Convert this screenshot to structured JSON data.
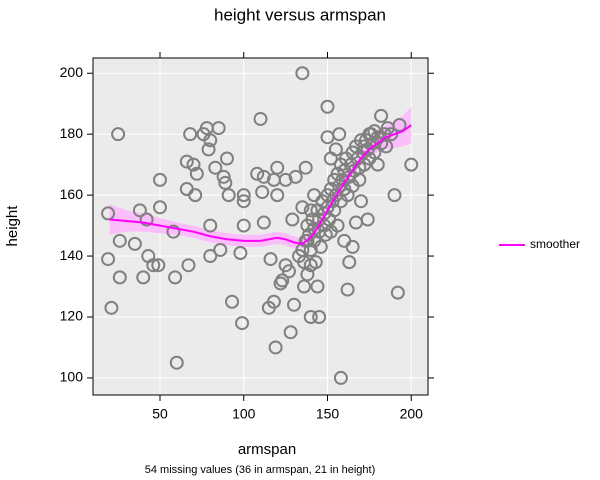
{
  "chart_data": {
    "type": "scatter",
    "title": "height versus armspan",
    "x_label": "armspan",
    "y_label": "height",
    "note": "54 missing values (36 in armspan, 21 in height)",
    "xlim": [
      10,
      210
    ],
    "ylim": [
      94.4,
      205
    ],
    "xticks": [
      50,
      100,
      150,
      200
    ],
    "yticks": [
      100,
      120,
      140,
      160,
      180,
      200
    ],
    "grid": true,
    "points": {
      "color": "#808080",
      "x": [
        19,
        19,
        21,
        25,
        26,
        26,
        35,
        38,
        40,
        42,
        43,
        46,
        49,
        50,
        50,
        58,
        59,
        60,
        66,
        66,
        67,
        68,
        70,
        71,
        72,
        76,
        78,
        79,
        80,
        80,
        80,
        83,
        85,
        86,
        88,
        89,
        90,
        91,
        93,
        98,
        99,
        100,
        100,
        100,
        108,
        110,
        111,
        112,
        112,
        115,
        116,
        118,
        118,
        119,
        120,
        120,
        122,
        123,
        125,
        125,
        127,
        128,
        129,
        130,
        131,
        135,
        135,
        136,
        137,
        138,
        140,
        140,
        142,
        144,
        145,
        150,
        150,
        152,
        155,
        157,
        158,
        160,
        162,
        163,
        165,
        167,
        169,
        170,
        172,
        174,
        175,
        178,
        180,
        182,
        185,
        188,
        190,
        192,
        193,
        200,
        133,
        135,
        136,
        137,
        138,
        138,
        139,
        140,
        140,
        141,
        142,
        142,
        143,
        144,
        145,
        145,
        146,
        147,
        148,
        148,
        149,
        150,
        150,
        151,
        152,
        152,
        153,
        154,
        154,
        155,
        156,
        156,
        157,
        158,
        158,
        159,
        160,
        160,
        161,
        162,
        163,
        164,
        165,
        165,
        166,
        167,
        168,
        169,
        170,
        171,
        172,
        173,
        174,
        175,
        176,
        177,
        178,
        180,
        182,
        184,
        186
      ],
      "y": [
        154,
        139,
        123,
        180,
        145,
        133,
        144,
        155,
        133,
        152,
        140,
        137,
        137,
        165,
        156,
        148,
        133,
        105,
        162,
        171,
        137,
        180,
        170,
        160,
        167,
        180,
        182,
        175,
        150,
        140,
        178,
        169,
        182,
        142,
        166,
        164,
        172,
        160,
        125,
        141,
        118,
        150,
        160,
        158,
        167,
        185,
        161,
        166,
        151,
        123,
        139,
        165,
        125,
        110,
        169,
        160,
        131,
        132,
        165,
        137,
        135,
        115,
        152,
        124,
        166,
        200,
        156,
        130,
        169,
        145,
        155,
        120,
        160,
        130,
        120,
        189,
        179,
        172,
        175,
        180,
        100,
        145,
        129,
        138,
        143,
        151,
        165,
        158,
        176,
        152,
        180,
        181,
        170,
        186,
        176,
        180,
        160,
        128,
        183,
        170,
        140,
        142,
        138,
        145,
        150,
        134,
        147,
        142,
        137,
        152,
        145,
        149,
        138,
        155,
        148,
        152,
        143,
        158,
        150,
        154,
        147,
        160,
        156,
        152,
        162,
        148,
        158,
        165,
        155,
        160,
        150,
        167,
        163,
        158,
        170,
        165,
        162,
        168,
        172,
        160,
        166,
        170,
        174,
        163,
        168,
        176,
        172,
        169,
        178,
        174,
        170,
        178,
        175,
        172,
        180,
        177,
        174,
        179,
        177,
        180,
        182
      ]
    },
    "smoother": {
      "name": "smoother",
      "color": "#ff00ff",
      "band_color": "#ffb3ff",
      "x": [
        20,
        30,
        40,
        50,
        60,
        70,
        80,
        90,
        100,
        110,
        120,
        125,
        130,
        135,
        140,
        145,
        150,
        155,
        160,
        165,
        170,
        175,
        180,
        185,
        190,
        195,
        200
      ],
      "values": [
        152,
        151.5,
        151,
        150,
        149,
        148,
        146.5,
        145.5,
        145,
        145,
        146,
        145.5,
        144.5,
        144,
        146,
        150,
        155,
        159.5,
        164,
        168,
        172,
        175,
        177,
        179,
        180,
        181,
        183
      ],
      "lower": [
        147,
        148,
        148,
        147.5,
        147,
        146,
        144.5,
        143.5,
        143,
        143,
        144,
        143.5,
        142.5,
        142.5,
        144.5,
        148.5,
        153.5,
        158,
        162.5,
        166.5,
        170,
        172.5,
        174,
        175,
        175.5,
        176,
        177
      ],
      "upper": [
        157,
        155,
        154,
        152.5,
        151,
        150,
        148.5,
        147.5,
        147,
        147,
        148,
        147.5,
        146.5,
        145.5,
        147.5,
        151.5,
        156.5,
        161,
        165.5,
        169.5,
        174,
        177.5,
        180,
        183,
        184.5,
        186,
        189
      ]
    }
  }
}
